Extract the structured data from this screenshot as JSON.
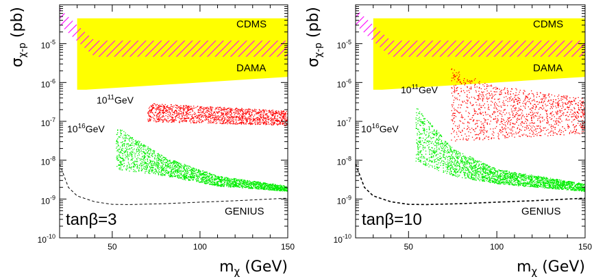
{
  "chart_data": [
    {
      "type": "scatter",
      "panel": "left",
      "xlabel": "m_χ (GeV)",
      "ylabel": "σ_χ-p (pb)",
      "xlim": [
        20,
        150
      ],
      "ylim": [
        1e-10,
        0.0001
      ],
      "y_scale": "log",
      "x_ticks": [
        50,
        100,
        150
      ],
      "y_ticks": [
        {
          "value": 1e-10,
          "label": "10",
          "exp": "-10"
        },
        {
          "value": 1e-09,
          "label": "10",
          "exp": "-9"
        },
        {
          "value": 1e-08,
          "label": "10",
          "exp": "-8"
        },
        {
          "value": 1e-07,
          "label": "10",
          "exp": "-7"
        },
        {
          "value": 1e-06,
          "label": "10",
          "exp": "-6"
        },
        {
          "value": 1e-05,
          "label": "10",
          "exp": "-5"
        }
      ],
      "regions": [
        {
          "name": "DAMA",
          "type": "area",
          "color": "#ffff00",
          "x": [
            30,
            150,
            150,
            35,
            30
          ],
          "y": [
            4.5e-05,
            4.5e-05,
            1.4e-06,
            6.5e-07,
            6.5e-07
          ]
        },
        {
          "name": "CDMS",
          "type": "hatched",
          "color": "#ff00ff",
          "x": [
            20,
            30,
            40,
            150
          ],
          "y": [
            8e-05,
            3e-05,
            1.2e-05,
            1.2e-05
          ]
        }
      ],
      "scatter_bands": [
        {
          "name": "10^11 GeV",
          "color": "#ff0000",
          "count": 1400,
          "x_range": [
            70,
            150
          ],
          "y_upper": [
            [
              70,
              3e-07
            ],
            [
              150,
              1.9e-07
            ]
          ],
          "y_lower": [
            [
              70,
              1e-07
            ],
            [
              150,
              8e-08
            ]
          ]
        },
        {
          "name": "10^16 GeV",
          "color": "#00ee00",
          "count": 2200,
          "x_range": [
            52,
            150
          ],
          "y_upper": [
            [
              52,
              7.5e-08
            ],
            [
              80,
              1.2e-08
            ],
            [
              110,
              4e-09
            ],
            [
              150,
              2.2e-09
            ]
          ],
          "y_lower": [
            [
              52,
              6e-09
            ],
            [
              80,
              4e-09
            ],
            [
              110,
              2.2e-09
            ],
            [
              150,
              1.6e-09
            ]
          ]
        }
      ],
      "curves": [
        {
          "name": "GENIUS",
          "style": "dashed",
          "color": "#000000",
          "x": [
            20,
            25,
            30,
            40,
            50,
            60,
            80,
            100,
            120,
            150
          ],
          "y": [
            8e-09,
            2e-09,
            1.2e-09,
            8.5e-10,
            7.3e-10,
            7.2e-10,
            7.6e-10,
            8.3e-10,
            9e-10,
            1.05e-09
          ]
        }
      ],
      "annotations": {
        "cdms": "CDMS",
        "dama": "DAMA",
        "genius": "GENIUS",
        "scale11_base": "10",
        "scale11_exp": "11",
        "scale11_unit": "GeV",
        "scale16_base": "10",
        "scale16_exp": "16",
        "scale16_unit": "GeV",
        "tanbeta": "tanβ=3"
      }
    },
    {
      "type": "scatter",
      "panel": "right",
      "xlabel": "m_χ (GeV)",
      "ylabel": "σ_χ-p (pb)",
      "xlim": [
        20,
        150
      ],
      "ylim": [
        1e-10,
        0.0001
      ],
      "y_scale": "log",
      "x_ticks": [
        50,
        100,
        150
      ],
      "y_ticks": [
        {
          "value": 1e-10,
          "label": "10",
          "exp": "-10"
        },
        {
          "value": 1e-09,
          "label": "10",
          "exp": "-9"
        },
        {
          "value": 1e-08,
          "label": "10",
          "exp": "-8"
        },
        {
          "value": 1e-07,
          "label": "10",
          "exp": "-7"
        },
        {
          "value": 1e-06,
          "label": "10",
          "exp": "-6"
        },
        {
          "value": 1e-05,
          "label": "10",
          "exp": "-5"
        }
      ],
      "regions": [
        {
          "name": "DAMA",
          "type": "area",
          "color": "#ffff00",
          "x": [
            30,
            150,
            150,
            35,
            30
          ],
          "y": [
            4.5e-05,
            4.5e-05,
            1.4e-06,
            6.5e-07,
            6.5e-07
          ]
        },
        {
          "name": "CDMS",
          "type": "hatched",
          "color": "#ff00ff",
          "x": [
            20,
            30,
            40,
            150
          ],
          "y": [
            8e-05,
            3e-05,
            1.2e-05,
            1.2e-05
          ]
        }
      ],
      "scatter_bands": [
        {
          "name": "10^11 GeV",
          "color": "#ff0000",
          "count": 1300,
          "x_range": [
            74,
            150
          ],
          "y_upper": [
            [
              74,
              2.5e-06
            ],
            [
              95,
              9e-07
            ],
            [
              150,
              4e-07
            ]
          ],
          "y_lower": [
            [
              74,
              3e-08
            ],
            [
              150,
              5e-08
            ]
          ]
        },
        {
          "name": "10^16 GeV",
          "color": "#00ee00",
          "count": 2400,
          "x_range": [
            54,
            150
          ],
          "y_upper": [
            [
              54,
              2.5e-07
            ],
            [
              75,
              2e-08
            ],
            [
              100,
              6e-09
            ],
            [
              150,
              2.5e-09
            ]
          ],
          "y_lower": [
            [
              54,
              9e-09
            ],
            [
              75,
              4e-09
            ],
            [
              100,
              2.5e-09
            ],
            [
              150,
              1.6e-09
            ]
          ]
        }
      ],
      "curves": [
        {
          "name": "GENIUS",
          "style": "dashed",
          "color": "#000000",
          "x": [
            20,
            25,
            30,
            40,
            50,
            60,
            80,
            100,
            120,
            150
          ],
          "y": [
            8e-09,
            2e-09,
            1.2e-09,
            8.5e-10,
            7.3e-10,
            7.2e-10,
            7.6e-10,
            8.3e-10,
            9e-10,
            1.05e-09
          ]
        }
      ],
      "annotations": {
        "cdms": "CDMS",
        "dama": "DAMA",
        "genius": "GENIUS",
        "scale11_base": "10",
        "scale11_exp": "11",
        "scale11_unit": "GeV",
        "scale16_base": "10",
        "scale16_exp": "16",
        "scale16_unit": "GeV",
        "tanbeta": "tanβ=10"
      }
    }
  ]
}
